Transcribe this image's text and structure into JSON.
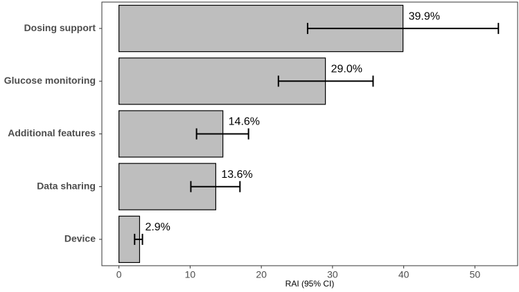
{
  "chart_data": {
    "type": "bar",
    "orientation": "horizontal",
    "x_label": "RAI (95% CI)",
    "categories": [
      "Dosing support",
      "Glucose monitoring",
      "Additional features",
      "Data sharing",
      "Device"
    ],
    "values": [
      39.9,
      29.0,
      14.6,
      13.6,
      2.9
    ],
    "value_labels": [
      "39.9%",
      "29.0%",
      "14.6%",
      "13.6%",
      "2.9%"
    ],
    "ci_lower": [
      26.5,
      22.4,
      10.9,
      10.1,
      2.2
    ],
    "ci_upper": [
      53.3,
      35.7,
      18.2,
      17.0,
      3.3
    ],
    "color": "#bebebe",
    "xlim": [
      -2.4,
      56.0
    ],
    "xticks": [
      0,
      10,
      20,
      30,
      40,
      50
    ],
    "grid": false
  }
}
